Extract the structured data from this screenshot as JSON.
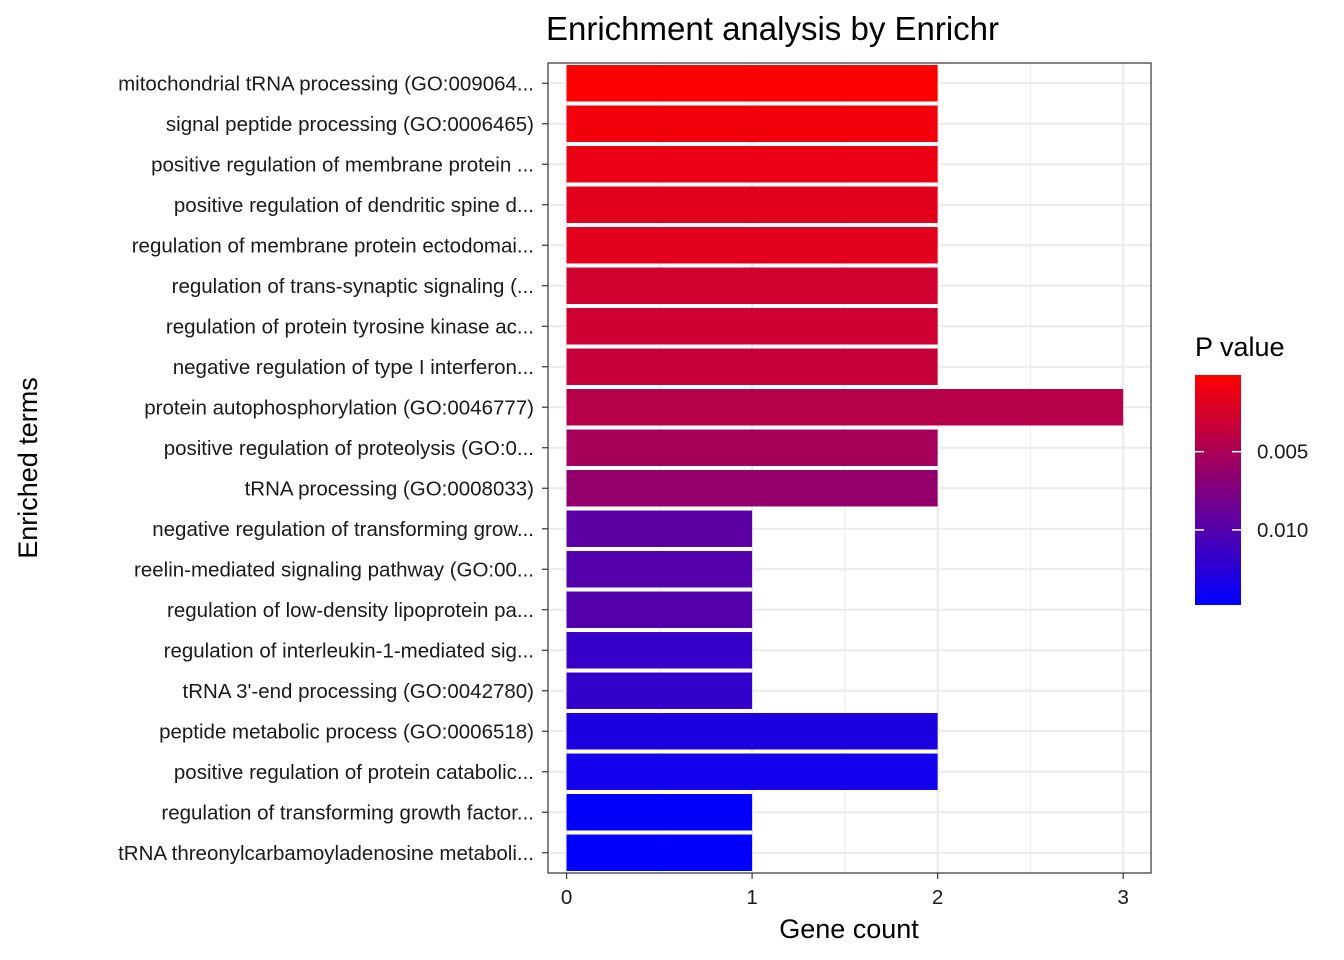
{
  "chart_data": {
    "type": "bar",
    "orientation": "horizontal",
    "title": "Enrichment analysis by Enrichr",
    "xlabel": "Gene count",
    "ylabel": "Enriched terms",
    "xlim": [
      -0.1,
      3.15
    ],
    "xticks": [
      0,
      1,
      2,
      3
    ],
    "grid": true,
    "categories": [
      "mitochondrial tRNA processing (GO:009064...",
      "signal peptide processing (GO:0006465)",
      "positive regulation of membrane protein ...",
      "positive regulation of dendritic spine d...",
      "regulation of membrane protein ectodomai...",
      "regulation of trans-synaptic signaling (...",
      "regulation of protein tyrosine kinase ac...",
      "negative regulation of type I interferon...",
      "protein autophosphorylation (GO:0046777)",
      "positive regulation of proteolysis (GO:0...",
      "tRNA processing (GO:0008033)",
      "negative regulation of transforming grow...",
      "reelin-mediated signaling pathway (GO:00...",
      "regulation of low-density lipoprotein pa...",
      "regulation of interleukin-1-mediated sig...",
      "tRNA 3'-end processing (GO:0042780)",
      "peptide metabolic process (GO:0006518)",
      "positive regulation of protein catabolic...",
      "regulation of transforming growth factor...",
      "tRNA threonylcarbamoyladenosine metaboli..."
    ],
    "values": [
      2,
      2,
      2,
      2,
      2,
      2,
      2,
      2,
      3,
      2,
      2,
      1,
      1,
      1,
      1,
      1,
      2,
      2,
      1,
      1
    ],
    "p_values": [
      0.0001,
      0.0008,
      0.0012,
      0.0017,
      0.0018,
      0.0028,
      0.0029,
      0.0034,
      0.0043,
      0.0053,
      0.0063,
      0.0095,
      0.01,
      0.01,
      0.0117,
      0.0118,
      0.0131,
      0.0137,
      0.0148,
      0.0148
    ],
    "legend": {
      "title": "P value",
      "placement": "right",
      "gradient_low_color": "#FF0000",
      "gradient_high_color": "#0000FF",
      "p_min": 0.0001,
      "p_max": 0.0148,
      "tick_values": [
        0.005,
        0.01
      ],
      "tick_labels": [
        "0.005",
        "0.010"
      ]
    },
    "bar_fill_rule": "reverse-scale: smallest P value = red, largest P value = blue"
  }
}
